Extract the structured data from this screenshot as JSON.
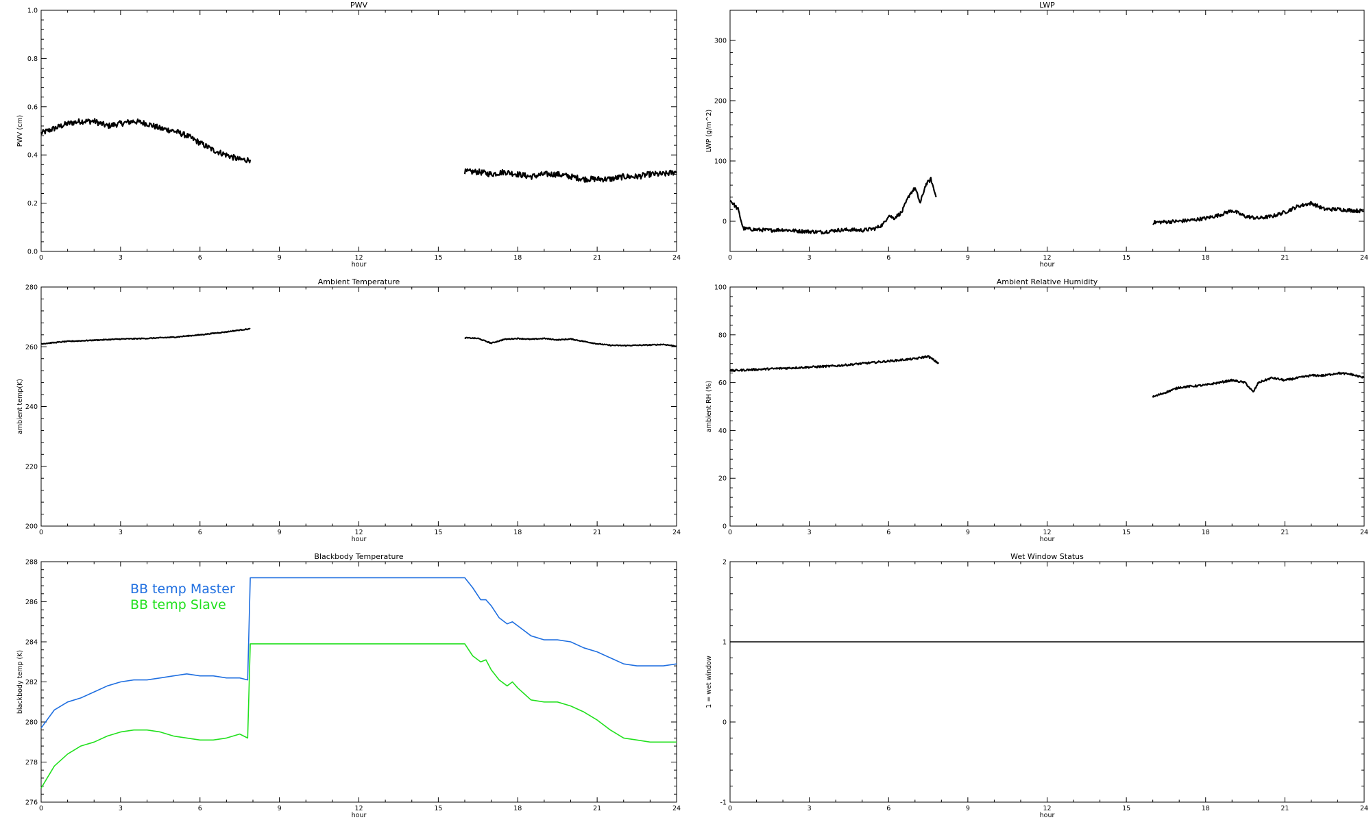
{
  "figure": {
    "background": "#ffffff",
    "ink": "#000000"
  },
  "chart_data": [
    {
      "id": "pwv",
      "type": "line",
      "title": "PWV",
      "xlabel": "hour",
      "ylabel": "PWV (cm)",
      "xlim": [
        0,
        24
      ],
      "ylim": [
        0,
        1.0
      ],
      "xticks": [
        0,
        3,
        6,
        9,
        12,
        15,
        18,
        21,
        24
      ],
      "yticks": [
        0.0,
        0.2,
        0.4,
        0.6,
        0.8,
        1.0
      ],
      "ytick_labels": [
        "0.0",
        "0.2",
        "0.4",
        "0.6",
        "0.8",
        "1.0"
      ],
      "grid": false,
      "noise": 0.012,
      "series": [
        {
          "color": "#000000",
          "segments": [
            {
              "x": [
                0,
                0.5,
                1,
                1.5,
                2,
                2.5,
                3,
                3.5,
                4,
                4.5,
                5,
                5.5,
                6,
                6.5,
                7,
                7.5,
                7.9
              ],
              "y": [
                0.49,
                0.51,
                0.53,
                0.54,
                0.54,
                0.52,
                0.53,
                0.54,
                0.53,
                0.51,
                0.5,
                0.48,
                0.45,
                0.42,
                0.4,
                0.38,
                0.38
              ]
            },
            {
              "x": [
                16,
                16.5,
                17,
                17.5,
                18,
                18.5,
                19,
                19.5,
                20,
                20.5,
                21,
                21.5,
                22,
                22.5,
                23,
                23.5,
                24
              ],
              "y": [
                0.33,
                0.33,
                0.32,
                0.33,
                0.32,
                0.31,
                0.32,
                0.32,
                0.31,
                0.3,
                0.3,
                0.3,
                0.31,
                0.31,
                0.32,
                0.32,
                0.33
              ]
            }
          ]
        }
      ]
    },
    {
      "id": "lwp",
      "type": "line",
      "title": "LWP",
      "xlabel": "hour",
      "ylabel": "LWP (g/m^2)",
      "xlim": [
        0,
        24
      ],
      "ylim": [
        -50,
        350
      ],
      "xticks": [
        0,
        3,
        6,
        9,
        12,
        15,
        18,
        21,
        24
      ],
      "yticks": [
        0,
        100,
        200,
        300
      ],
      "ytick_labels": [
        "0",
        "100",
        "200",
        "300"
      ],
      "grid": false,
      "noise": 3,
      "series": [
        {
          "color": "#000000",
          "segments": [
            {
              "x": [
                0,
                0.3,
                0.5,
                1,
                1.5,
                2,
                2.5,
                3,
                3.5,
                4,
                4.5,
                5,
                5.5,
                5.8,
                6,
                6.2,
                6.5,
                6.8,
                7,
                7.2,
                7.4,
                7.6,
                7.8
              ],
              "y": [
                35,
                20,
                -12,
                -14,
                -15,
                -14,
                -16,
                -17,
                -18,
                -15,
                -14,
                -15,
                -12,
                -5,
                10,
                5,
                15,
                45,
                55,
                30,
                60,
                70,
                40
              ]
            },
            {
              "x": [
                16,
                16.5,
                17,
                17.5,
                18,
                18.5,
                19,
                19.5,
                20,
                20.5,
                21,
                21.5,
                22,
                22.5,
                23,
                23.5,
                24
              ],
              "y": [
                -2,
                -1,
                0,
                2,
                5,
                10,
                18,
                8,
                5,
                8,
                15,
                25,
                30,
                20,
                20,
                18,
                17
              ]
            }
          ]
        }
      ]
    },
    {
      "id": "ambient-temperature",
      "type": "line",
      "title": "Ambient Temperature",
      "xlabel": "hour",
      "ylabel": "ambient temp(K)",
      "xlim": [
        0,
        24
      ],
      "ylim": [
        200,
        280
      ],
      "xticks": [
        0,
        3,
        6,
        9,
        12,
        15,
        18,
        21,
        24
      ],
      "yticks": [
        200,
        220,
        240,
        260,
        280
      ],
      "ytick_labels": [
        "200",
        "220",
        "240",
        "260",
        "280"
      ],
      "grid": false,
      "noise": 0.15,
      "series": [
        {
          "color": "#000000",
          "segments": [
            {
              "x": [
                0,
                1,
                2,
                3,
                4,
                5,
                6,
                7,
                7.5,
                7.9
              ],
              "y": [
                261,
                261.8,
                262.2,
                262.6,
                262.8,
                263.2,
                264,
                265,
                265.6,
                266
              ]
            },
            {
              "x": [
                16,
                16.5,
                17,
                17.5,
                18,
                18.5,
                19,
                19.5,
                20,
                20.5,
                21,
                21.5,
                22,
                22.5,
                23,
                23.5,
                24
              ],
              "y": [
                263,
                262.8,
                261.2,
                262.5,
                262.8,
                262.5,
                262.8,
                262.3,
                262.6,
                261.8,
                261,
                260.5,
                260.4,
                260.5,
                260.6,
                260.8,
                260.2
              ]
            }
          ]
        }
      ]
    },
    {
      "id": "ambient-relative-humidity",
      "type": "line",
      "title": "Ambient Relative Humidity",
      "xlabel": "hour",
      "ylabel": "ambient RH (%)",
      "xlim": [
        0,
        24
      ],
      "ylim": [
        0,
        100
      ],
      "xticks": [
        0,
        3,
        6,
        9,
        12,
        15,
        18,
        21,
        24
      ],
      "yticks": [
        0,
        20,
        40,
        60,
        80,
        100
      ],
      "ytick_labels": [
        "0",
        "20",
        "40",
        "60",
        "80",
        "100"
      ],
      "grid": false,
      "noise": 0.4,
      "series": [
        {
          "color": "#000000",
          "segments": [
            {
              "x": [
                0,
                1,
                2,
                3,
                4,
                5,
                6,
                7,
                7.5,
                7.9
              ],
              "y": [
                65,
                65.5,
                66,
                66.5,
                67,
                68,
                69,
                70,
                71,
                68
              ]
            },
            {
              "x": [
                16,
                16.5,
                17,
                17.5,
                18,
                18.5,
                19,
                19.5,
                19.8,
                20,
                20.5,
                21,
                21.5,
                22,
                22.5,
                23,
                23.5,
                24
              ],
              "y": [
                54,
                56,
                58,
                58.5,
                59,
                60,
                61,
                60,
                56,
                60,
                62,
                61,
                62,
                63,
                63,
                64,
                63.5,
                62
              ]
            }
          ]
        }
      ]
    },
    {
      "id": "blackbody-temperature",
      "type": "line",
      "title": "Blackbody Temperature",
      "xlabel": "hour",
      "ylabel": "blackbody temp (K)",
      "xlim": [
        0,
        24
      ],
      "ylim": [
        276,
        288
      ],
      "xticks": [
        0,
        3,
        6,
        9,
        12,
        15,
        18,
        21,
        24
      ],
      "yticks": [
        276,
        278,
        280,
        282,
        284,
        286,
        288
      ],
      "ytick_labels": [
        "276",
        "278",
        "280",
        "282",
        "284",
        "286",
        "288"
      ],
      "grid": false,
      "noise": 0,
      "legend": "top-left",
      "series": [
        {
          "name": "BB temp Master",
          "color": "#1f6fe0",
          "segments": [
            {
              "x": [
                0,
                0.5,
                1,
                1.5,
                2,
                2.5,
                3,
                3.5,
                4,
                4.5,
                5,
                5.5,
                6,
                6.5,
                7,
                7.5,
                7.8,
                7.9,
                8,
                9,
                10,
                11,
                12,
                13,
                14,
                15,
                16,
                16.3,
                16.6,
                16.8,
                17,
                17.3,
                17.6,
                17.8,
                18,
                18.5,
                19,
                19.5,
                20,
                20.5,
                21,
                21.5,
                22,
                22.5,
                23,
                23.5,
                24
              ],
              "y": [
                279.7,
                280.6,
                281,
                281.2,
                281.5,
                281.8,
                282,
                282.1,
                282.1,
                282.2,
                282.3,
                282.4,
                282.3,
                282.3,
                282.2,
                282.2,
                282.1,
                287.2,
                287.2,
                287.2,
                287.2,
                287.2,
                287.2,
                287.2,
                287.2,
                287.2,
                287.2,
                286.7,
                286.1,
                286.1,
                285.8,
                285.2,
                284.9,
                285,
                284.8,
                284.3,
                284.1,
                284.1,
                284,
                283.7,
                283.5,
                283.2,
                282.9,
                282.8,
                282.8,
                282.8,
                282.9
              ]
            }
          ]
        },
        {
          "name": "BB temp Slave",
          "color": "#22e01e",
          "segments": [
            {
              "x": [
                0,
                0.5,
                1,
                1.5,
                2,
                2.5,
                3,
                3.5,
                4,
                4.5,
                5,
                5.5,
                6,
                6.5,
                7,
                7.5,
                7.8,
                7.9,
                8,
                9,
                10,
                11,
                12,
                13,
                14,
                15,
                16,
                16.3,
                16.6,
                16.8,
                17,
                17.3,
                17.6,
                17.8,
                18,
                18.5,
                19,
                19.5,
                20,
                20.5,
                21,
                21.5,
                22,
                22.5,
                23,
                23.5,
                24
              ],
              "y": [
                276.7,
                277.8,
                278.4,
                278.8,
                279,
                279.3,
                279.5,
                279.6,
                279.6,
                279.5,
                279.3,
                279.2,
                279.1,
                279.1,
                279.2,
                279.4,
                279.2,
                283.9,
                283.9,
                283.9,
                283.9,
                283.9,
                283.9,
                283.9,
                283.9,
                283.9,
                283.9,
                283.3,
                283,
                283.1,
                282.6,
                282.1,
                281.8,
                282,
                281.7,
                281.1,
                281,
                281,
                280.8,
                280.5,
                280.1,
                279.6,
                279.2,
                279.1,
                279,
                279,
                279
              ]
            }
          ]
        }
      ]
    },
    {
      "id": "wet-window-status",
      "type": "line",
      "title": "Wet Window Status",
      "xlabel": "hour",
      "ylabel": "1 = wet window",
      "xlim": [
        0,
        24
      ],
      "ylim": [
        -1,
        2
      ],
      "xticks": [
        0,
        3,
        6,
        9,
        12,
        15,
        18,
        21,
        24
      ],
      "yticks": [
        -1,
        0,
        1,
        2
      ],
      "ytick_labels": [
        "-1",
        "0",
        "1",
        "2"
      ],
      "grid": false,
      "noise": 0,
      "series": [
        {
          "color": "#000000",
          "segments": [
            {
              "x": [
                0,
                24
              ],
              "y": [
                1,
                1
              ]
            }
          ]
        }
      ]
    }
  ]
}
